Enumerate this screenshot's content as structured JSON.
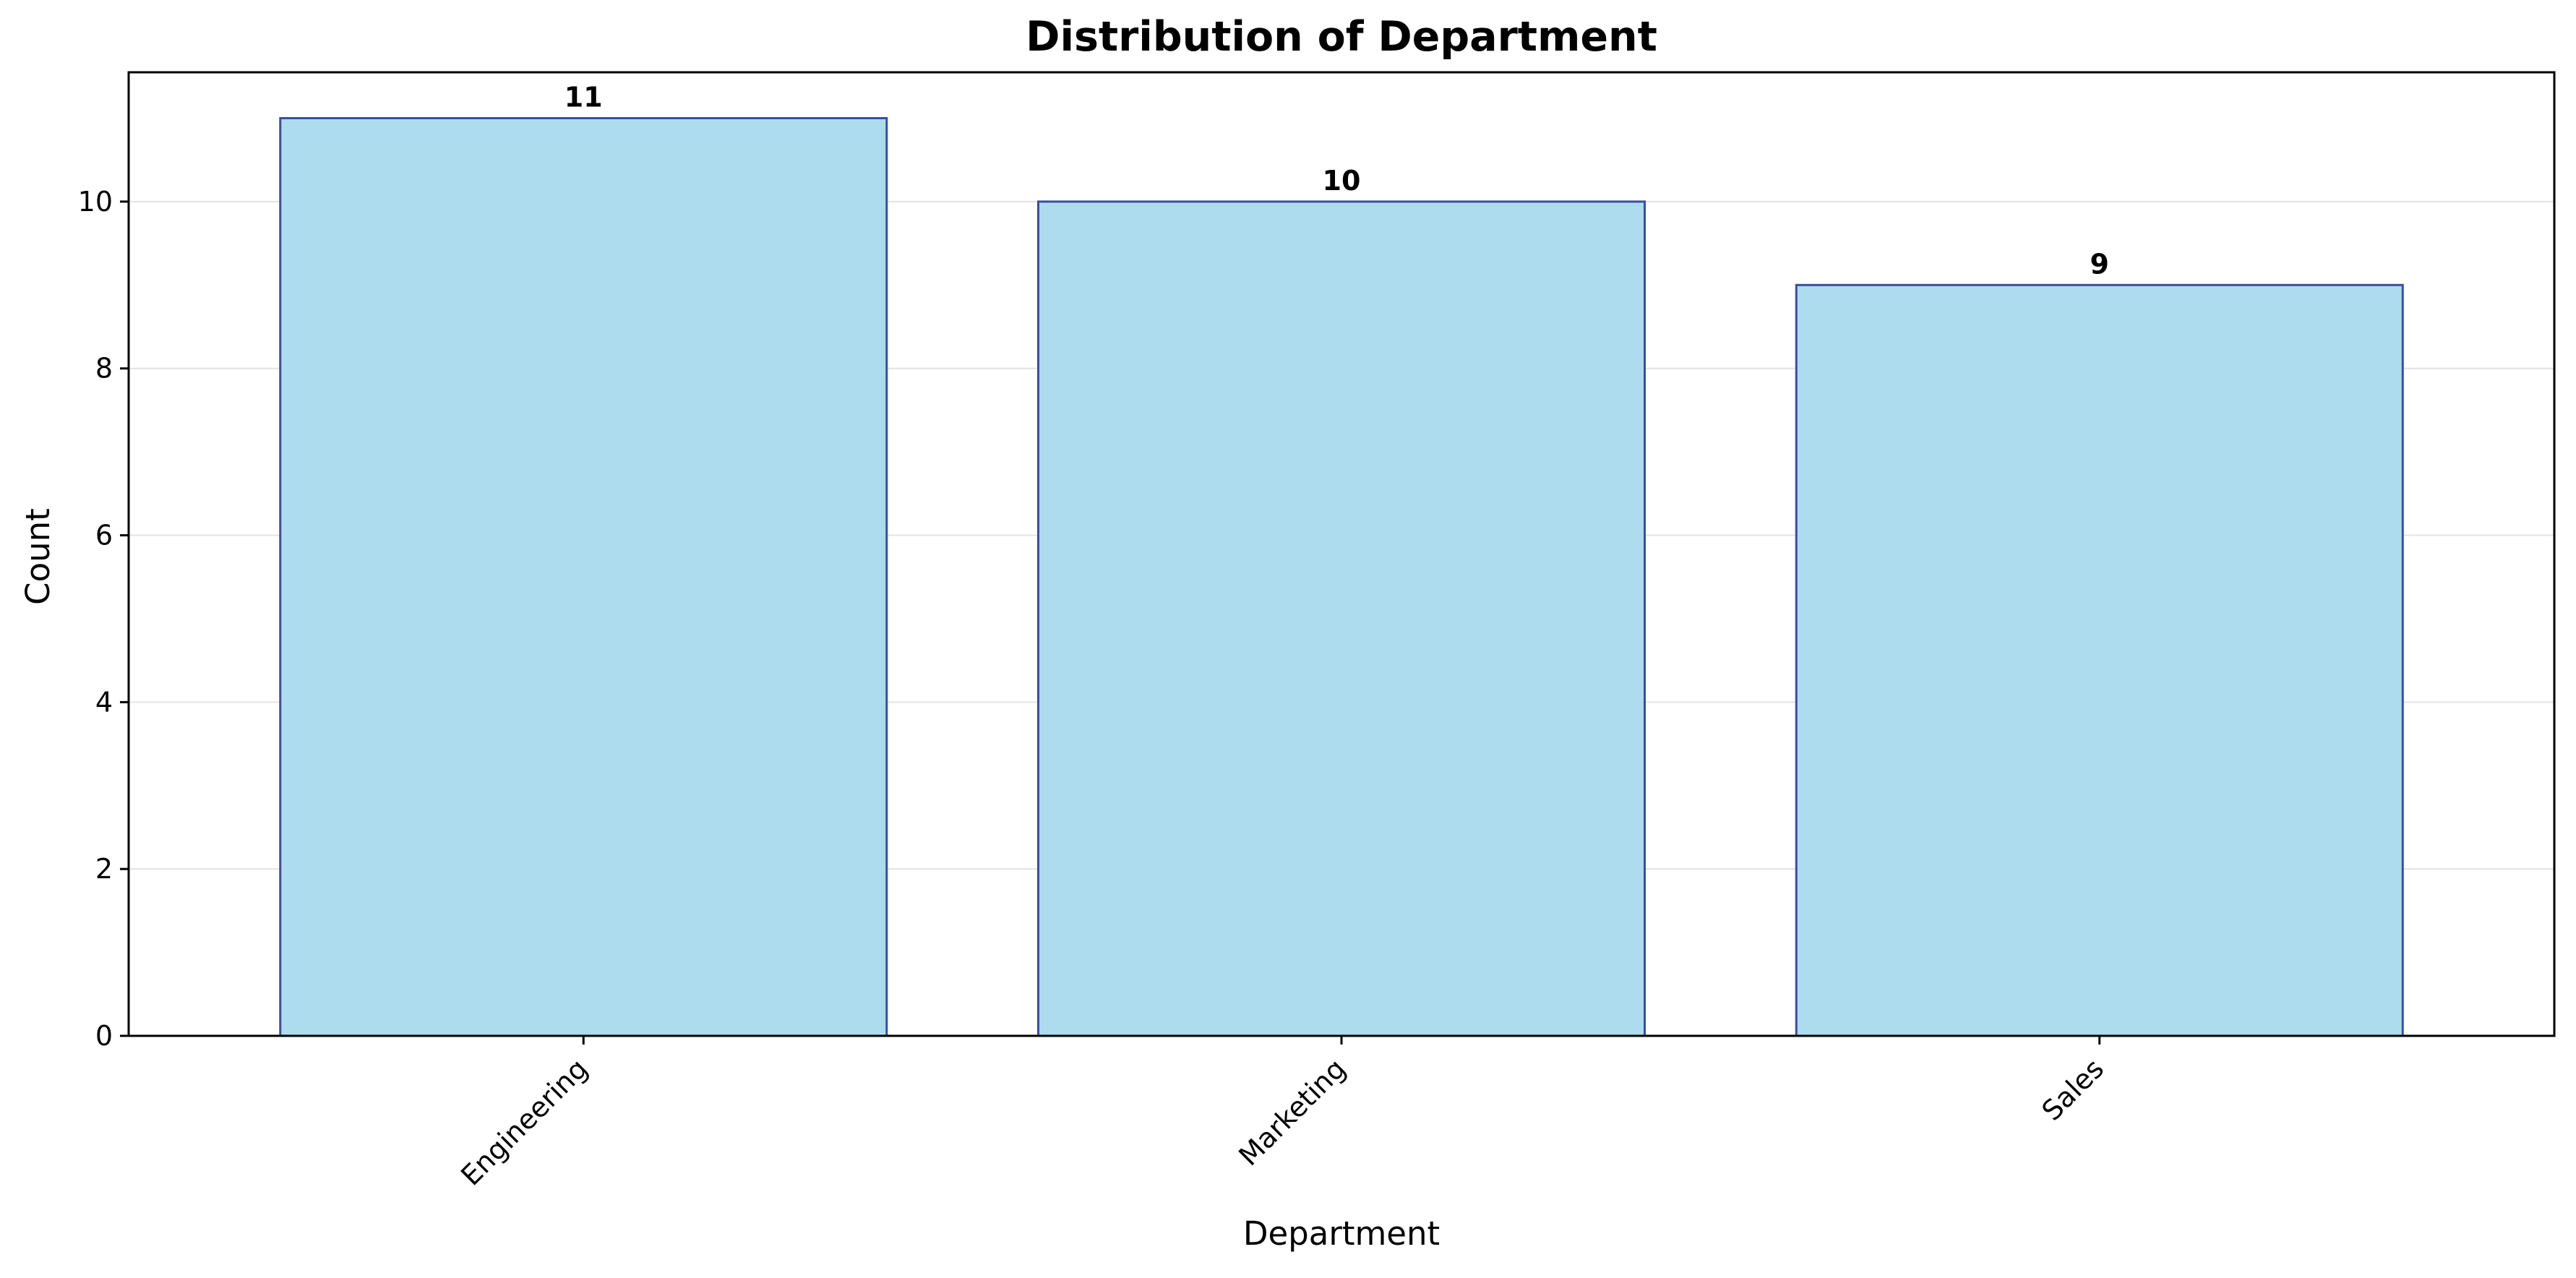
{
  "chart_data": {
    "type": "bar",
    "title": "Distribution of Department",
    "xlabel": "Department",
    "ylabel": "Count",
    "categories": [
      "Engineering",
      "Marketing",
      "Sales"
    ],
    "values": [
      11,
      10,
      9
    ],
    "ylim": [
      0,
      11.55
    ],
    "yticks": [
      0,
      2,
      4,
      6,
      8,
      10
    ],
    "ytick_labels": [
      "0",
      "2",
      "4",
      "6",
      "8",
      "10"
    ],
    "data_labels": [
      "11",
      "10",
      "9"
    ],
    "grid": "horizontal",
    "legend": "none",
    "colors": {
      "bar_fill": "#ADDCEE",
      "bar_edge": "#3A4EA0",
      "grid": "#E3E3E3",
      "axis": "#000000"
    }
  }
}
